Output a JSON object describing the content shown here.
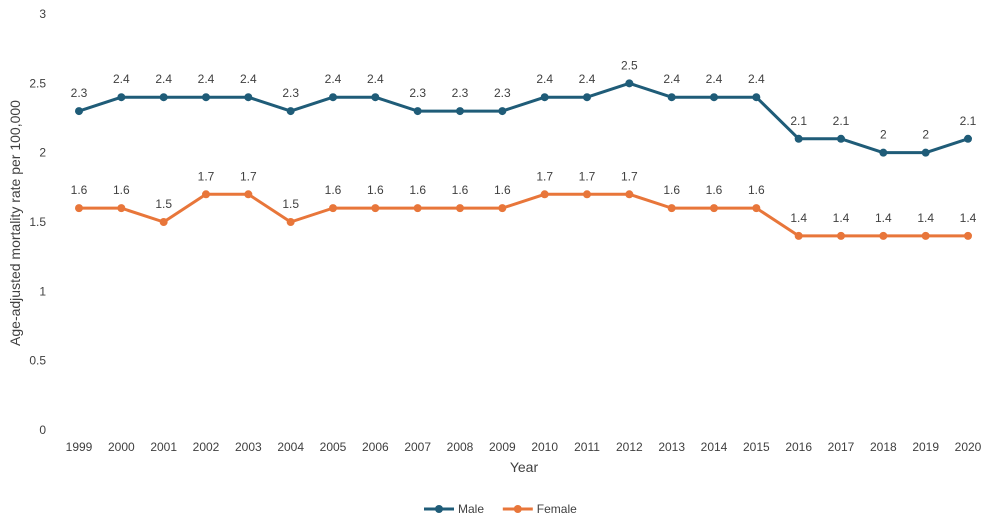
{
  "chart_data": {
    "type": "line",
    "title": "",
    "xlabel": "Year",
    "ylabel": "Age-adjusted mortality rate per 100,000",
    "ylim": [
      0,
      3
    ],
    "yticks": [
      "0",
      "0.5",
      "1",
      "1.5",
      "2",
      "2.5",
      "3"
    ],
    "grid": false,
    "legend_position": "bottom",
    "categories": [
      "1999",
      "2000",
      "2001",
      "2002",
      "2003",
      "2004",
      "2005",
      "2006",
      "2007",
      "2008",
      "2009",
      "2010",
      "2011",
      "2012",
      "2013",
      "2014",
      "2015",
      "2016",
      "2017",
      "2018",
      "2019",
      "2020"
    ],
    "series": [
      {
        "name": "Male",
        "color": "#1f5c78",
        "values": [
          2.3,
          2.4,
          2.4,
          2.4,
          2.4,
          2.3,
          2.4,
          2.4,
          2.3,
          2.3,
          2.3,
          2.4,
          2.4,
          2.5,
          2.4,
          2.4,
          2.4,
          2.1,
          2.1,
          2,
          2,
          2.1
        ]
      },
      {
        "name": "Female",
        "color": "#e8763a",
        "values": [
          1.6,
          1.6,
          1.5,
          1.7,
          1.7,
          1.5,
          1.6,
          1.6,
          1.6,
          1.6,
          1.6,
          1.7,
          1.7,
          1.7,
          1.6,
          1.6,
          1.6,
          1.4,
          1.4,
          1.4,
          1.4,
          1.4
        ]
      }
    ]
  }
}
